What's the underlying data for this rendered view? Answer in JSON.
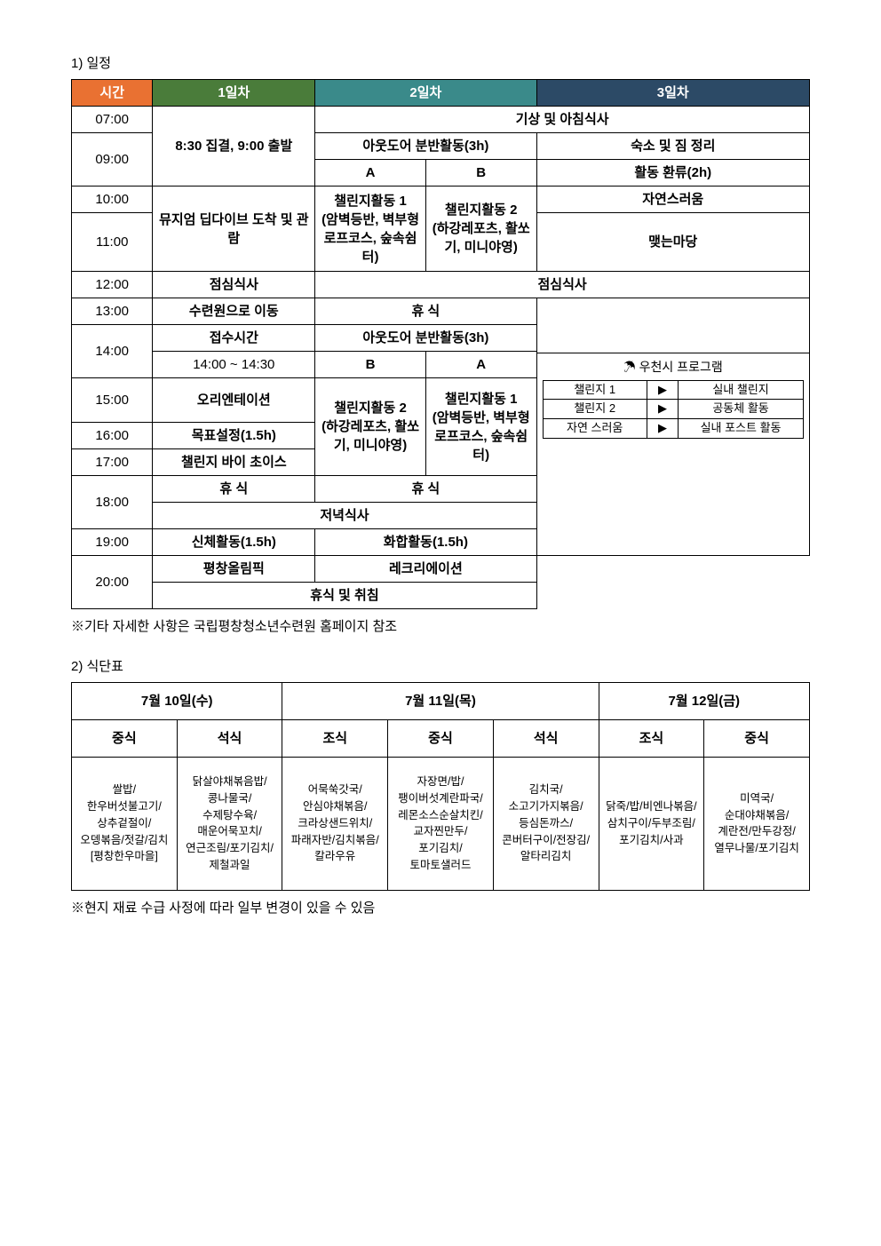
{
  "schedule": {
    "section_title": "1) 일정",
    "headers": {
      "time": "시간",
      "day1": "1일차",
      "day2": "2일차",
      "day3": "3일차"
    },
    "times": [
      "07:00",
      "09:00",
      "",
      "10:00",
      "11:00",
      "12:00",
      "13:00",
      "14:00",
      "",
      "15:00",
      "16:00",
      "17:00",
      "18:00",
      "",
      "19:00",
      "20:00",
      ""
    ],
    "d1": {
      "assemble": "8:30 집결, 9:00 출발",
      "museum": "뮤지엄 딥다이브 도착 및 관람",
      "lunch": "점심식사",
      "move": "수련원으로 이동",
      "reception": "접수시간",
      "reception_time": "14:00 ~ 14:30",
      "orientation": "오리엔테이션",
      "goal": "목표설정(1.5h)",
      "choice": "챌린지 바이 초이스",
      "rest": "휴 식",
      "dinner": "저녁식사",
      "body": "신체활동(1.5h)",
      "olympic": "평창올림픽",
      "sleep": "휴식 및 취침"
    },
    "d2": {
      "wake": "기상 및 아침식사",
      "outdoor_am": "아웃도어 분반활동(3h)",
      "a": "A",
      "b": "B",
      "c1_title": "챌린지활동 1",
      "c1_body": "(암벽등반, 벽부형 로프코스, 숲속쉼터)",
      "c2_title": "챌린지활동 2",
      "c2_body": "(하강레포츠, 활쏘기, 미니야영)",
      "lunch": "점심식사",
      "rest_pm": "휴 식",
      "outdoor_pm": "아웃도어 분반활동(3h)",
      "b2": "B",
      "a2": "A",
      "c2b_title": "챌린지활동 2",
      "c2b_body": "(하강레포츠, 활쏘기, 미니야영)",
      "c1b_title": "챌린지활동 1",
      "c1b_body": "(암벽등반, 벽부형 로프코스, 숲속쉼터)",
      "rest_eve": "휴 식",
      "harmony": "화합활동(1.5h)",
      "rec": "레크리에이션"
    },
    "d3": {
      "clean": "숙소 및 짐 정리",
      "reflect": "활동 환류(2h)",
      "natural": "자연스러움",
      "yard": "맺는마당",
      "rainy_title": "☂ 우천시 프로그램",
      "r1a": "챌린지 1",
      "r1b": "실내 챌린지",
      "r2a": "챌린지 2",
      "r2b": "공동체 활동",
      "r3a": "자연 스러움",
      "r3b": "실내 포스트 활동",
      "arrow": "▶"
    },
    "note": "※기타 자세한 사항은 국립평창청소년수련원 홈페이지 참조"
  },
  "meals": {
    "section_title": "2) 식단표",
    "dates": [
      "7월 10일(수)",
      "7월 11일(목)",
      "7월 12일(금)"
    ],
    "types": {
      "jo": "조식",
      "jung": "중식",
      "seok": "석식"
    },
    "d10_jung": "쌀밥/한우버섯불고기/상추겉절이/오뎅볶음/젓갈/김치\n[평창한우마을]",
    "d10_seok": "닭살야채볶음밥/콩나물국/수제탕수육/매운어묵꼬치/연근조림/포기김치/제철과일",
    "d11_jo": "어묵쑥갓국/안심야채볶음/크라상샌드위치/파래자반/김치볶음/칼라우유",
    "d11_jung": "자장면/밥/팽이버섯계란파국/레몬소스순살치킨/교자찐만두/포기김치/토마토샐러드",
    "d11_seok": "김치국/소고기가지볶음/등심돈까스/콘버터구이/전장김/알타리김치",
    "d12_jo": "닭죽/밥/비엔나볶음/삼치구이/두부조림/포기김치/사과",
    "d12_jung": "미역국/순대야채볶음/계란전/만두강정/열무나물/포기김치",
    "note": "※현지 재료 수급 사정에 따라 일부 변경이 있을 수 있음"
  }
}
